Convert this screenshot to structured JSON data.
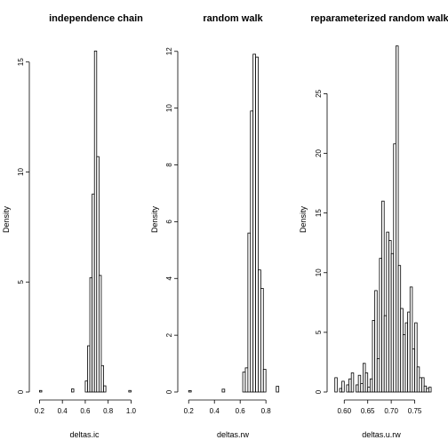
{
  "chart_data": [
    {
      "type": "bar",
      "title": "independence chain",
      "xlabel": "deltas.ic",
      "ylabel": "Density",
      "xlim": [
        0.15,
        1.02
      ],
      "ylim": [
        0,
        16
      ],
      "x_ticks": [
        0.2,
        0.4,
        0.6,
        0.8,
        1.0
      ],
      "x_tick_labels": [
        "0.2",
        "0.4",
        "0.6",
        "0.8",
        "1.0"
      ],
      "y_ticks": [
        0,
        5,
        10,
        15
      ],
      "y_tick_labels": [
        "0",
        "5",
        "10",
        "15"
      ],
      "bin_width": 0.02,
      "bins": [
        {
          "x": 0.2,
          "y": 0.07
        },
        {
          "x": 0.48,
          "y": 0.14
        },
        {
          "x": 0.6,
          "y": 0.5
        },
        {
          "x": 0.62,
          "y": 2.1
        },
        {
          "x": 0.64,
          "y": 5.2
        },
        {
          "x": 0.66,
          "y": 9.0
        },
        {
          "x": 0.68,
          "y": 15.5
        },
        {
          "x": 0.7,
          "y": 10.7
        },
        {
          "x": 0.72,
          "y": 5.3
        },
        {
          "x": 0.74,
          "y": 1.2
        },
        {
          "x": 0.76,
          "y": 0.28
        },
        {
          "x": 0.98,
          "y": 0.07
        }
      ]
    },
    {
      "type": "bar",
      "title": "random walk",
      "xlabel": "deltas.rw",
      "ylabel": "Density",
      "xlim": [
        0.15,
        0.93
      ],
      "ylim": [
        0,
        12.4
      ],
      "x_ticks": [
        0.2,
        0.4,
        0.6,
        0.8
      ],
      "x_tick_labels": [
        "0.2",
        "0.4",
        "0.6",
        "0.8"
      ],
      "y_ticks": [
        0,
        2,
        4,
        6,
        8,
        10,
        12
      ],
      "y_tick_labels": [
        "0",
        "2",
        "4",
        "6",
        "8",
        "10",
        "12"
      ],
      "bin_width": 0.02,
      "bins": [
        {
          "x": 0.2,
          "y": 0.05
        },
        {
          "x": 0.46,
          "y": 0.1
        },
        {
          "x": 0.62,
          "y": 0.7
        },
        {
          "x": 0.64,
          "y": 0.85
        },
        {
          "x": 0.66,
          "y": 5.6
        },
        {
          "x": 0.68,
          "y": 9.9
        },
        {
          "x": 0.7,
          "y": 11.9
        },
        {
          "x": 0.72,
          "y": 11.8
        },
        {
          "x": 0.74,
          "y": 4.3
        },
        {
          "x": 0.76,
          "y": 3.65
        },
        {
          "x": 0.78,
          "y": 0.8
        },
        {
          "x": 0.88,
          "y": 0.2
        }
      ]
    },
    {
      "type": "bar",
      "title": "reparameterized random walk",
      "xlabel": "deltas.u.rw",
      "ylabel": "Density",
      "xlim": [
        0.573,
        0.783
      ],
      "ylim": [
        0,
        29.5
      ],
      "x_ticks": [
        0.6,
        0.65,
        0.7,
        0.75
      ],
      "x_tick_labels": [
        "0.60",
        "0.65",
        "0.70",
        "0.75"
      ],
      "y_ticks": [
        0,
        5,
        10,
        15,
        20,
        25
      ],
      "y_tick_labels": [
        "0",
        "5",
        "10",
        "15",
        "20",
        "25"
      ],
      "bin_width": 0.005,
      "bins": [
        {
          "x": 0.58,
          "y": 1.2
        },
        {
          "x": 0.59,
          "y": 0.3
        },
        {
          "x": 0.595,
          "y": 0.9
        },
        {
          "x": 0.605,
          "y": 0.6
        },
        {
          "x": 0.61,
          "y": 1.1
        },
        {
          "x": 0.615,
          "y": 1.6
        },
        {
          "x": 0.625,
          "y": 0.6
        },
        {
          "x": 0.63,
          "y": 1.4
        },
        {
          "x": 0.635,
          "y": 0.7
        },
        {
          "x": 0.64,
          "y": 2.4
        },
        {
          "x": 0.645,
          "y": 1.6
        },
        {
          "x": 0.65,
          "y": 0.4
        },
        {
          "x": 0.655,
          "y": 1.1
        },
        {
          "x": 0.66,
          "y": 6.0
        },
        {
          "x": 0.665,
          "y": 8.5
        },
        {
          "x": 0.67,
          "y": 2.8
        },
        {
          "x": 0.675,
          "y": 11.2
        },
        {
          "x": 0.68,
          "y": 16.0
        },
        {
          "x": 0.685,
          "y": 6.4
        },
        {
          "x": 0.69,
          "y": 13.4
        },
        {
          "x": 0.695,
          "y": 12.7
        },
        {
          "x": 0.7,
          "y": 11.6
        },
        {
          "x": 0.705,
          "y": 20.8
        },
        {
          "x": 0.71,
          "y": 29.0
        },
        {
          "x": 0.715,
          "y": 10.6
        },
        {
          "x": 0.72,
          "y": 7.0
        },
        {
          "x": 0.725,
          "y": 4.8
        },
        {
          "x": 0.73,
          "y": 5.8
        },
        {
          "x": 0.735,
          "y": 6.7
        },
        {
          "x": 0.74,
          "y": 8.8
        },
        {
          "x": 0.745,
          "y": 3.6
        },
        {
          "x": 0.75,
          "y": 5.8
        },
        {
          "x": 0.755,
          "y": 2.1
        },
        {
          "x": 0.76,
          "y": 1.2
        },
        {
          "x": 0.765,
          "y": 1.2
        },
        {
          "x": 0.77,
          "y": 0.5
        },
        {
          "x": 0.775,
          "y": 0.3
        },
        {
          "x": 0.78,
          "y": 0.4
        }
      ]
    }
  ]
}
